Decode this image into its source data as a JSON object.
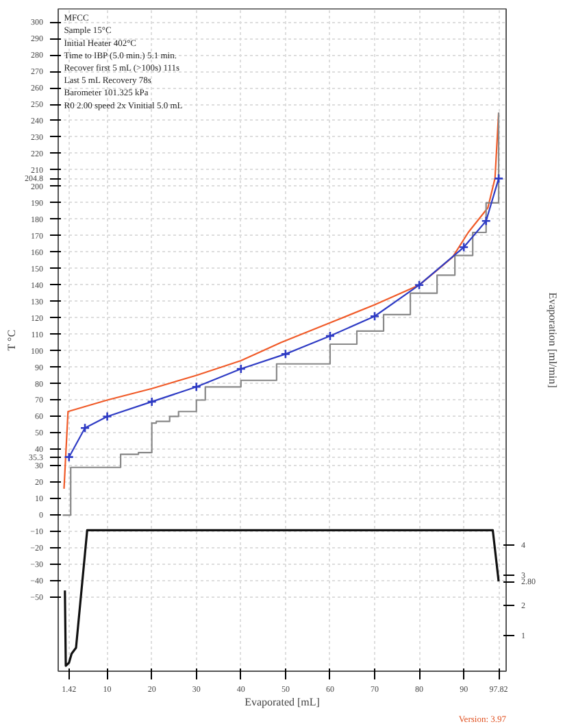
{
  "chart_data": {
    "type": "line",
    "title": "MFCC",
    "annotations": [
      "Sample 15°C",
      "Initial Heater   402°C",
      "Time to IBP (5.0 min.)      5.1 min.",
      "Recover first 5 mL (>100s)  111s",
      "Last 5 mL Recovery           78s",
      "Barometer              101.325 kPa",
      "R0 2.00 speed 2x Vinitial 5.0 mL",
      "Version: 3.97"
    ],
    "xlabel": "Evaporated [mL]",
    "ylabel": "T °C",
    "y2label": "Evaporation [ml/min]",
    "xlim": [
      -1,
      99.5
    ],
    "ylim": [
      -95,
      308
    ],
    "y2lim": [
      -0.18,
      21.8
    ],
    "xticks": [
      {
        "value": 1.42,
        "label": "1.42"
      },
      10,
      20,
      30,
      40,
      50,
      60,
      70,
      80,
      90,
      {
        "value": 97.82,
        "label": "97.82"
      }
    ],
    "yticks": [
      -50,
      -40,
      -30,
      -20,
      -10,
      0,
      10,
      20,
      30,
      {
        "value": 35.3,
        "label": "35.3"
      },
      40,
      50,
      60,
      70,
      80,
      90,
      100,
      110,
      120,
      130,
      140,
      150,
      160,
      170,
      180,
      190,
      200,
      {
        "value": 204.8,
        "label": "204.8"
      },
      210,
      220,
      230,
      240,
      250,
      260,
      270,
      280,
      290,
      300
    ],
    "y2ticks": [
      1,
      2,
      {
        "value": 2.8,
        "label": "2.80"
      },
      3,
      4
    ],
    "grid": true,
    "line_style": "solid",
    "series": [
      {
        "color": "#f05a28",
        "marker": "none",
        "x": [
          0.3,
          1.2,
          10,
          20,
          30,
          40,
          49,
          60,
          70,
          80,
          84,
          87.5,
          91,
          95.4,
          97,
          97.82
        ],
        "values": [
          16,
          63,
          70,
          77,
          85,
          94,
          105,
          117,
          128,
          140,
          149,
          157,
          172,
          187,
          205,
          245
        ]
      },
      {
        "color": "#888888",
        "type": "step",
        "marker": "none",
        "x": [
          0,
          1.4,
          1.8,
          13,
          17,
          20,
          21,
          24,
          26,
          30,
          32,
          40,
          48,
          60,
          66,
          72,
          78,
          84,
          88,
          92,
          95,
          97.82
        ],
        "values": [
          0,
          0,
          29,
          37,
          38,
          56,
          57,
          60,
          63,
          70,
          78,
          82,
          92,
          104,
          112,
          122,
          135,
          146,
          158,
          172,
          190,
          245
        ]
      },
      {
        "color": "#2e3bc4",
        "marker": "cross",
        "x": [
          1.42,
          5,
          10,
          20,
          30,
          40,
          50,
          60,
          70,
          80,
          90,
          95,
          97.82
        ],
        "values": [
          35.3,
          53,
          60,
          69,
          78,
          89,
          98,
          109,
          121,
          140,
          163,
          179,
          204.8
        ]
      },
      {
        "color": "#111111",
        "marker": "none",
        "axis": "y2",
        "x": [
          0.5,
          0.7,
          1.42,
          2,
          3,
          5.5,
          96.5,
          97.82
        ],
        "values": [
          2.5,
          0,
          0.1,
          0.4,
          0.6,
          4.5,
          4.5,
          2.8
        ]
      }
    ]
  }
}
